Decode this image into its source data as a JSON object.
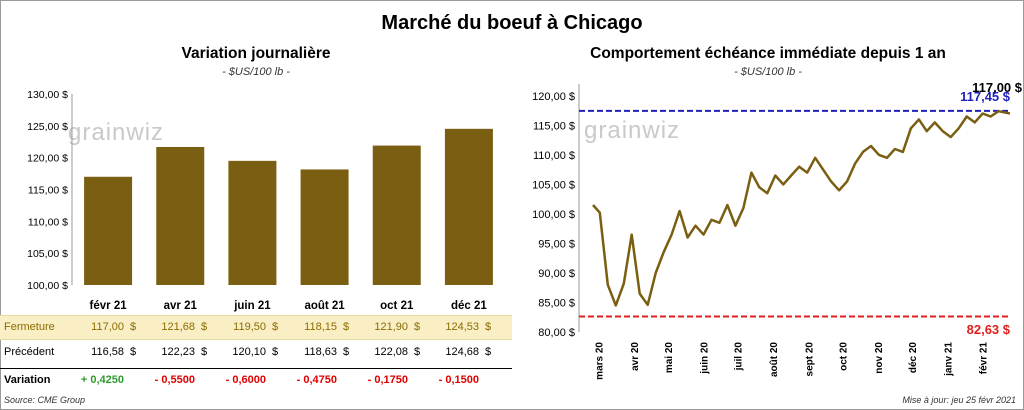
{
  "title": "Marché du boeuf à Chicago",
  "left_panel": {
    "title": "Variation  journalière",
    "unit": "- $US/100 lb -",
    "watermark": "grainwiz"
  },
  "right_panel": {
    "title": "Comportement  échéance immédiate depuis 1 an",
    "unit": "- $US/100 lb -",
    "watermark": "grainwiz",
    "last_value_label": "117,00 $",
    "high_label": "117,45 $",
    "low_label": "82,63 $"
  },
  "table": {
    "rows": [
      {
        "label": "Fermeture",
        "values": [
          "117,00",
          "121,68",
          "119,50",
          "118,15",
          "121,90",
          "124,53"
        ],
        "unit": "$"
      },
      {
        "label": "Précédent",
        "values": [
          "116,58",
          "122,23",
          "120,10",
          "118,63",
          "122,08",
          "124,68"
        ],
        "unit": "$"
      },
      {
        "label": "Variation",
        "values": [
          "+ 0,4250",
          "- 0,5500",
          "- 0,6000",
          "- 0,4750",
          "- 0,1750",
          "- 0,1500"
        ],
        "unit": ""
      }
    ]
  },
  "footer": {
    "source": "Source: CME Group",
    "updated": "Mise à jour: jeu 25 févr 2021"
  },
  "colors": {
    "bar": "#7a5f12",
    "line": "#7a5f12",
    "high_line": "#2222bb",
    "low_line": "#e02020",
    "fermeture_bg": "#f9eec4",
    "positive": "#2e9b2e",
    "negative": "#e00000"
  },
  "chart_data": [
    {
      "type": "bar",
      "title": "Variation  journalière",
      "subtitle": "- $US/100 lb -",
      "categories": [
        "févr 21",
        "avr 21",
        "juin 21",
        "août 21",
        "oct 21",
        "déc 21"
      ],
      "values": [
        117.0,
        121.68,
        119.5,
        118.15,
        121.9,
        124.53
      ],
      "ylim": [
        100,
        130
      ],
      "yticks": [
        "100,00 $",
        "105,00 $",
        "110,00 $",
        "115,00 $",
        "120,00 $",
        "125,00 $",
        "130,00 $"
      ],
      "grid": false,
      "legend": "none"
    },
    {
      "type": "line",
      "title": "Comportement  échéance immédiate depuis 1 an",
      "subtitle": "- $US/100 lb -",
      "x": [
        "2020-02-25",
        "2020-03-02",
        "2020-03-09",
        "2020-03-16",
        "2020-03-23",
        "2020-03-30",
        "2020-04-06",
        "2020-04-13",
        "2020-04-20",
        "2020-04-27",
        "2020-05-04",
        "2020-05-11",
        "2020-05-18",
        "2020-05-25",
        "2020-06-01",
        "2020-06-08",
        "2020-06-15",
        "2020-06-22",
        "2020-06-29",
        "2020-07-06",
        "2020-07-13",
        "2020-07-20",
        "2020-07-27",
        "2020-08-03",
        "2020-08-10",
        "2020-08-17",
        "2020-08-24",
        "2020-08-31",
        "2020-09-07",
        "2020-09-14",
        "2020-09-21",
        "2020-09-28",
        "2020-10-05",
        "2020-10-12",
        "2020-10-19",
        "2020-10-26",
        "2020-11-02",
        "2020-11-09",
        "2020-11-16",
        "2020-11-23",
        "2020-11-30",
        "2020-12-07",
        "2020-12-14",
        "2020-12-21",
        "2020-12-28",
        "2021-01-04",
        "2021-01-11",
        "2021-01-18",
        "2021-01-25",
        "2021-02-01",
        "2021-02-08",
        "2021-02-15",
        "2021-02-25"
      ],
      "values": [
        101.5,
        100.2,
        88.0,
        84.5,
        88.2,
        96.5,
        86.5,
        84.6,
        90.0,
        93.5,
        96.5,
        100.5,
        96.0,
        98.0,
        96.5,
        99.0,
        98.5,
        101.5,
        98.0,
        101.0,
        107.0,
        104.5,
        103.5,
        106.5,
        105.0,
        106.5,
        108.0,
        107.0,
        109.5,
        107.5,
        105.5,
        104.0,
        105.5,
        108.5,
        110.5,
        111.5,
        110.0,
        109.5,
        111.0,
        110.5,
        114.5,
        116.0,
        114.0,
        115.5,
        114.0,
        113.0,
        114.5,
        116.5,
        115.5,
        117.0,
        116.5,
        117.4,
        117.0
      ],
      "xlabels": [
        "mars 20",
        "avr 20",
        "mai 20",
        "juin 20",
        "juil 20",
        "août 20",
        "sept 20",
        "oct 20",
        "nov 20",
        "déc 20",
        "janv 21",
        "févr 21"
      ],
      "ylim": [
        80,
        122
      ],
      "yticks": [
        "80,00 $",
        "85,00 $",
        "90,00 $",
        "95,00 $",
        "100,00 $",
        "105,00 $",
        "110,00 $",
        "115,00 $",
        "120,00 $"
      ],
      "annotations": [
        {
          "label": "117,45 $",
          "y": 117.45,
          "style": "dashed",
          "color": "#2222bb"
        },
        {
          "label": "82,63 $",
          "y": 82.63,
          "style": "dashed",
          "color": "#e02020"
        },
        {
          "label": "117,00 $",
          "y": 117.0,
          "note": "last"
        }
      ],
      "grid": false,
      "legend": "none"
    }
  ]
}
